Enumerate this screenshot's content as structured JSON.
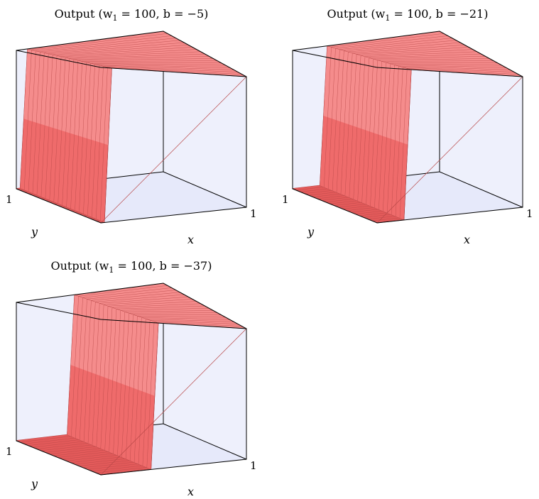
{
  "colors": {
    "wall": "#eef0fc",
    "floor": "#e6e9fa",
    "surface_top": "#f58c8c",
    "surface_front": "#ef6b6b",
    "surface_dark": "#e35a5a",
    "edge": "#b84848"
  },
  "chart_data": [
    {
      "type": "surface",
      "title": "Output (w",
      "title_sub": "1",
      "title_rest": " = 100, b = −5)",
      "w1": 100,
      "b": -5,
      "step_x": 0.05,
      "x_tick": "1",
      "y_tick": "1",
      "xlabel": "x",
      "ylabel": "y",
      "xlim": [
        0,
        1
      ],
      "ylim": [
        0,
        1
      ],
      "zlim": [
        0,
        1
      ]
    },
    {
      "type": "surface",
      "title": "Output (w",
      "title_sub": "1",
      "title_rest": " = 100, b = −21)",
      "w1": 100,
      "b": -21,
      "step_x": 0.21,
      "x_tick": "1",
      "y_tick": "1",
      "xlabel": "x",
      "ylabel": "y",
      "xlim": [
        0,
        1
      ],
      "ylim": [
        0,
        1
      ],
      "zlim": [
        0,
        1
      ]
    },
    {
      "type": "surface",
      "title": "Output (w",
      "title_sub": "1",
      "title_rest": " = 100, b = −37)",
      "w1": 100,
      "b": -37,
      "step_x": 0.37,
      "x_tick": "1",
      "y_tick": "1",
      "xlabel": "x",
      "ylabel": "y",
      "xlim": [
        0,
        1
      ],
      "ylim": [
        0,
        1
      ],
      "zlim": [
        0,
        1
      ]
    }
  ]
}
